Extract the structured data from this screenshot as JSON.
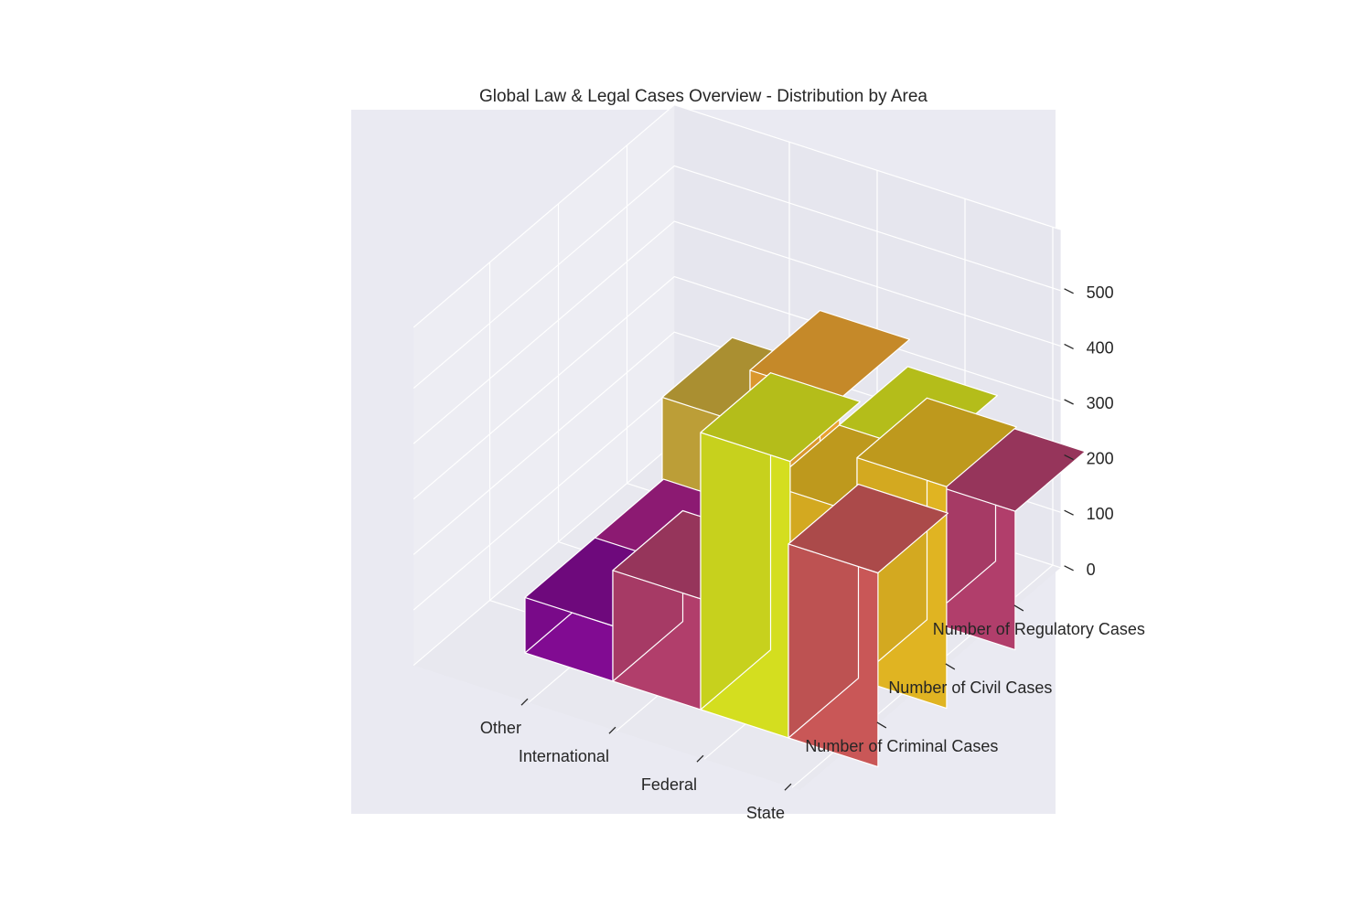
{
  "chart_data": {
    "type": "bar3d",
    "title": "Global Law & Legal Cases Overview - Distribution by Area",
    "categories": [
      "State",
      "Federal",
      "International",
      "Other"
    ],
    "series": [
      {
        "name": "Number of Criminal Cases",
        "values": [
          350,
          500,
          200,
          100
        ]
      },
      {
        "name": "Number of Civil Cases",
        "values": [
          400,
          300,
          150,
          100
        ]
      },
      {
        "name": "Number of Regulatory Cases",
        "values": [
          250,
          300,
          350,
          250
        ]
      }
    ],
    "zlim": [
      0,
      500
    ],
    "zticks": [
      0,
      100,
      200,
      300,
      400,
      500
    ],
    "grid": true,
    "colors": {
      "State": [
        "#c95757",
        "#e0b422",
        "#b13e6b"
      ],
      "Federal": [
        "#d4de1f",
        "#e0b422",
        "#d4de1f"
      ],
      "International": [
        "#b13e6b",
        "#e8a130",
        "#e8a130"
      ],
      "Other": [
        "#810b92",
        "#a51f86",
        "#c8a83a"
      ],
      "axes_background": "#eaeaf2",
      "pane": "#e6e6ee",
      "edge": "#ffffff"
    }
  }
}
